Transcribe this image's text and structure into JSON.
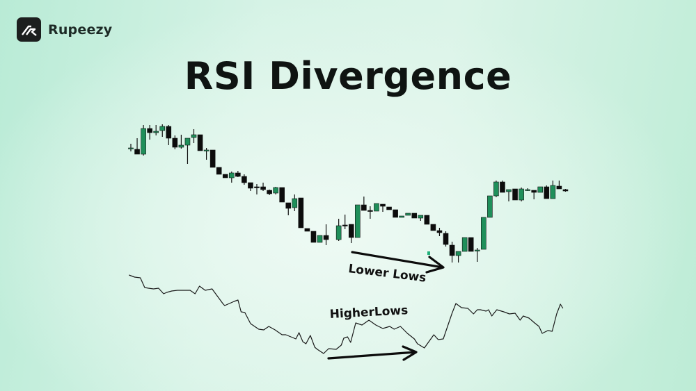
{
  "brand": {
    "name": "Rupeezy",
    "logo_icon": "rupeezy-logo-icon"
  },
  "title": "RSI Divergence",
  "colors": {
    "bullish": "#1f8f5a",
    "bearish": "#0c0c0c",
    "line": "#1a1a1a",
    "background": "#d8f3e7"
  },
  "chart_data": [
    {
      "type": "candlestick",
      "title": "",
      "xlabel": "",
      "ylabel": "",
      "axes_visible": false,
      "grid": false,
      "candle_fields": [
        "open",
        "high",
        "low",
        "close"
      ],
      "candles": [
        [
          187,
          193,
          182,
          187
        ],
        [
          185,
          201,
          178,
          178
        ],
        [
          178,
          220,
          176,
          215
        ],
        [
          215,
          220,
          199,
          209
        ],
        [
          209,
          220,
          205,
          211
        ],
        [
          212,
          221,
          203,
          218
        ],
        [
          218,
          220,
          191,
          201
        ],
        [
          201,
          205,
          185,
          188
        ],
        [
          188,
          206,
          186,
          191
        ],
        [
          191,
          201,
          164,
          201
        ],
        [
          202,
          214,
          194,
          206
        ],
        [
          206,
          206,
          183,
          183
        ],
        [
          184,
          187,
          170,
          184
        ],
        [
          184,
          184,
          159,
          159
        ],
        [
          159,
          159,
          149,
          149
        ],
        [
          149,
          149,
          144,
          144
        ],
        [
          144,
          153,
          137,
          151
        ],
        [
          151,
          154,
          145,
          146
        ],
        [
          146,
          149,
          134,
          137
        ],
        [
          137,
          137,
          125,
          129
        ],
        [
          131,
          135,
          120,
          130
        ],
        [
          131,
          137,
          125,
          127
        ],
        [
          126,
          127,
          119,
          121
        ],
        [
          122,
          131,
          120,
          130
        ],
        [
          130,
          130,
          109,
          109
        ],
        [
          108,
          108,
          90,
          100
        ],
        [
          101,
          120,
          96,
          114
        ],
        [
          115,
          115,
          72,
          72
        ],
        [
          71,
          71,
          67,
          67
        ],
        [
          67,
          67,
          51,
          51
        ],
        [
          51,
          61,
          51,
          61
        ],
        [
          61,
          77,
          47,
          55
        ],
        null,
        [
          55,
          85,
          53,
          75
        ],
        [
          76,
          91,
          70,
          75
        ],
        [
          77,
          77,
          50,
          58
        ],
        [
          58,
          105,
          58,
          105
        ],
        [
          105,
          117,
          97,
          97
        ],
        [
          97,
          103,
          85,
          96
        ],
        [
          96,
          107,
          96,
          107
        ],
        [
          106,
          106,
          95,
          103
        ],
        [
          102,
          102,
          98,
          98
        ],
        [
          98,
          98,
          87,
          87
        ],
        [
          87,
          89,
          87,
          89
        ],
        [
          90,
          93,
          90,
          93
        ],
        [
          93,
          93,
          86,
          86
        ],
        [
          86,
          90,
          82,
          90
        ],
        [
          90,
          90,
          77,
          77
        ],
        [
          77,
          77,
          68,
          68
        ],
        [
          68,
          72,
          60,
          65
        ],
        [
          64,
          67,
          45,
          48
        ],
        [
          47,
          52,
          22,
          32
        ],
        [
          32,
          38,
          22,
          38
        ],
        [
          38,
          58,
          38,
          58
        ],
        [
          58,
          58,
          38,
          38
        ],
        [
          40,
          43,
          23,
          40
        ],
        [
          41,
          87,
          41,
          87
        ],
        [
          87,
          118,
          87,
          118
        ],
        [
          118,
          140,
          116,
          138
        ],
        [
          138,
          140,
          123,
          123
        ],
        [
          124,
          127,
          110,
          127
        ],
        [
          128,
          128,
          112,
          112
        ],
        [
          112,
          130,
          110,
          128
        ],
        [
          127,
          129,
          125,
          127
        ],
        [
          126,
          126,
          113,
          123
        ],
        [
          123,
          131,
          123,
          131
        ],
        [
          131,
          133,
          114,
          114
        ],
        [
          114,
          140,
          114,
          133
        ],
        [
          132,
          140,
          128,
          128
        ],
        [
          127,
          128,
          124,
          125
        ]
      ],
      "annotation": {
        "label": "Lower Lows",
        "type": "arrow",
        "direction": "down-right"
      }
    },
    {
      "type": "line",
      "title": "",
      "xlabel": "",
      "ylabel": "",
      "axes_visible": false,
      "grid": false,
      "point_fields": [
        "bar",
        "value"
      ],
      "points": [
        [
          -0.3,
          134
        ],
        [
          0.6,
          131
        ],
        [
          1.5,
          130
        ],
        [
          2.2,
          116
        ],
        [
          2.8,
          115
        ],
        [
          3.6,
          114
        ],
        [
          4.4,
          115
        ],
        [
          5.2,
          107
        ],
        [
          5.7,
          109
        ],
        [
          6.5,
          111
        ],
        [
          7.4,
          112
        ],
        [
          8.5,
          112
        ],
        [
          9.4,
          112
        ],
        [
          10.2,
          107
        ],
        [
          10.9,
          118
        ],
        [
          11.8,
          112
        ],
        [
          12.9,
          114
        ],
        [
          14.6,
          93
        ],
        [
          14.9,
          90
        ],
        [
          16.4,
          96
        ],
        [
          17.0,
          98
        ],
        [
          17.5,
          81
        ],
        [
          18.1,
          80
        ],
        [
          19.0,
          64
        ],
        [
          20.3,
          56
        ],
        [
          21.1,
          55
        ],
        [
          21.9,
          60
        ],
        [
          22.9,
          55
        ],
        [
          24.0,
          48
        ],
        [
          24.6,
          48
        ],
        [
          25.4,
          45
        ],
        [
          26.2,
          42
        ],
        [
          26.7,
          51
        ],
        [
          27.3,
          38
        ],
        [
          27.8,
          35
        ],
        [
          28.5,
          47
        ],
        [
          29.2,
          30
        ],
        [
          29.6,
          27
        ],
        [
          30.6,
          21
        ],
        [
          31.4,
          28
        ],
        [
          32.6,
          27
        ],
        [
          33.4,
          33
        ],
        [
          33.8,
          43
        ],
        [
          34.4,
          45
        ],
        [
          34.9,
          37
        ],
        [
          35.7,
          65
        ],
        [
          36.7,
          62
        ],
        [
          37.8,
          69
        ],
        [
          38.9,
          62
        ],
        [
          40.0,
          57
        ],
        [
          41.1,
          60
        ],
        [
          41.8,
          56
        ],
        [
          42.8,
          60
        ],
        [
          43.9,
          50
        ],
        [
          45.0,
          42
        ],
        [
          45.5,
          35
        ],
        [
          46.6,
          29
        ],
        [
          48.1,
          48
        ],
        [
          48.8,
          41
        ],
        [
          49.6,
          42
        ],
        [
          51.0,
          79
        ],
        [
          51.6,
          93
        ],
        [
          52.5,
          87
        ],
        [
          53.5,
          86
        ],
        [
          54.4,
          78
        ],
        [
          55.0,
          84
        ],
        [
          55.5,
          84
        ],
        [
          56.4,
          82
        ],
        [
          56.8,
          84
        ],
        [
          57.3,
          75
        ],
        [
          58.1,
          84
        ],
        [
          59.2,
          81
        ],
        [
          60.1,
          78
        ],
        [
          61.0,
          79
        ],
        [
          61.8,
          69
        ],
        [
          62.3,
          75
        ],
        [
          63.2,
          72
        ],
        [
          64.1,
          65
        ],
        [
          64.8,
          60
        ],
        [
          65.3,
          50
        ],
        [
          66.2,
          54
        ],
        [
          66.9,
          53
        ],
        [
          67.6,
          78
        ],
        [
          68.2,
          92
        ],
        [
          68.6,
          86
        ]
      ],
      "annotation": {
        "label": "HigherLows",
        "type": "arrow",
        "direction": "up-right"
      }
    }
  ]
}
